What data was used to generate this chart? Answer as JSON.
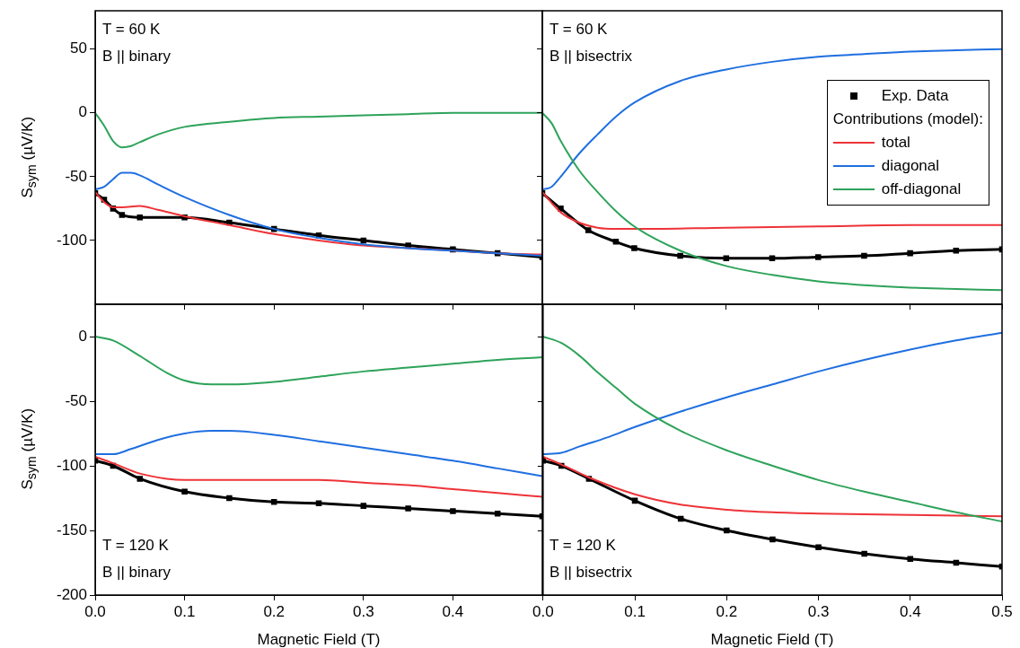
{
  "chart_data": [
    {
      "type": "line",
      "ylabel": "S$_{sym}$ (µV/K)",
      "annotations": [
        "T = 60 K",
        "B || binary"
      ],
      "xlim": [
        0,
        0.5
      ],
      "ylim": [
        -150,
        80
      ],
      "yticks": [
        50,
        0,
        -50,
        -100
      ],
      "xticks": [
        {
          "value": 0,
          "label": null
        },
        {
          "value": 0.1,
          "label": null
        },
        {
          "value": 0.2,
          "label": null
        },
        {
          "value": 0.3,
          "label": null
        },
        {
          "value": 0.4,
          "label": null
        },
        {
          "value": 0.5,
          "label": null
        }
      ],
      "tick_labels": "y",
      "grid": false,
      "legend": false,
      "series": [
        {
          "color": "#000000",
          "marker": "square",
          "x": [
            0,
            0.01,
            0.02,
            0.03,
            0.05,
            0.1,
            0.15,
            0.2,
            0.25,
            0.3,
            0.35,
            0.4,
            0.45,
            0.5
          ],
          "values": [
            -63,
            -68,
            -75,
            -80,
            -82,
            -82,
            -86,
            -91,
            -96,
            -100,
            -104,
            -107,
            -110,
            -113
          ]
        },
        {
          "color": "#ee3338",
          "x": [
            0,
            0.01,
            0.02,
            0.03,
            0.05,
            0.07,
            0.1,
            0.15,
            0.2,
            0.25,
            0.3,
            0.35,
            0.4,
            0.45,
            0.5
          ],
          "values": [
            -62,
            -70,
            -74,
            -74,
            -73,
            -76,
            -81,
            -88,
            -95,
            -100,
            -104,
            -106,
            -108,
            -110,
            -111
          ]
        },
        {
          "color": "#1f6fe0",
          "x": [
            0,
            0.01,
            0.02,
            0.03,
            0.04,
            0.05,
            0.07,
            0.1,
            0.15,
            0.2,
            0.25,
            0.3,
            0.35,
            0.4,
            0.45,
            0.5
          ],
          "values": [
            -60,
            -58,
            -52,
            -47,
            -47,
            -49,
            -56,
            -66,
            -80,
            -91,
            -98,
            -103,
            -106,
            -108,
            -110,
            -112
          ]
        },
        {
          "color": "#2ea35a",
          "x": [
            0,
            0.01,
            0.02,
            0.03,
            0.04,
            0.05,
            0.07,
            0.1,
            0.15,
            0.2,
            0.25,
            0.3,
            0.35,
            0.4,
            0.45,
            0.5
          ],
          "values": [
            0,
            -10,
            -22,
            -27,
            -26,
            -23,
            -17,
            -11,
            -7,
            -4,
            -3,
            -2,
            -1,
            0,
            0,
            0
          ]
        }
      ]
    },
    {
      "type": "line",
      "annotations": [
        "T = 60 K",
        "B || bisectrix"
      ],
      "legend_title": "Contributions (model):",
      "xlim": [
        0,
        0.5
      ],
      "ylim": [
        -150,
        80
      ],
      "yticks": [
        {
          "value": 50,
          "label": null
        },
        {
          "value": 0,
          "label": null
        },
        {
          "value": -50,
          "label": null
        },
        {
          "value": -100,
          "label": null
        }
      ],
      "xticks": [
        {
          "value": 0,
          "label": null
        },
        {
          "value": 0.1,
          "label": null
        },
        {
          "value": 0.2,
          "label": null
        },
        {
          "value": 0.3,
          "label": null
        },
        {
          "value": 0.4,
          "label": null
        },
        {
          "value": 0.5,
          "label": null
        }
      ],
      "tick_labels": false,
      "grid": false,
      "legend": "right",
      "series": [
        {
          "name": "Exp. Data",
          "color": "#000000",
          "marker": "square",
          "x": [
            0,
            0.02,
            0.05,
            0.08,
            0.1,
            0.15,
            0.2,
            0.25,
            0.3,
            0.35,
            0.4,
            0.45,
            0.5
          ],
          "values": [
            -63,
            -75,
            -92,
            -101,
            -106,
            -112,
            -114,
            -114,
            -113,
            -112,
            -110,
            -108,
            -107
          ]
        },
        {
          "name": "total",
          "color": "#ee3338",
          "x": [
            0,
            0.02,
            0.04,
            0.06,
            0.08,
            0.1,
            0.2,
            0.3,
            0.4,
            0.5
          ],
          "values": [
            -62,
            -78,
            -86,
            -90,
            -91,
            -91,
            -90,
            -89,
            -88,
            -88
          ]
        },
        {
          "name": "diagonal",
          "color": "#1f6fe0",
          "x": [
            0,
            0.01,
            0.02,
            0.04,
            0.06,
            0.08,
            0.1,
            0.15,
            0.2,
            0.25,
            0.3,
            0.35,
            0.4,
            0.45,
            0.5
          ],
          "values": [
            -60,
            -58,
            -50,
            -32,
            -17,
            -3,
            8,
            25,
            34,
            40,
            44,
            46,
            48,
            49,
            50
          ]
        },
        {
          "name": "off-diagonal",
          "color": "#2ea35a",
          "x": [
            0,
            0.01,
            0.02,
            0.04,
            0.06,
            0.08,
            0.1,
            0.15,
            0.2,
            0.25,
            0.3,
            0.35,
            0.4,
            0.45,
            0.5
          ],
          "values": [
            0,
            -8,
            -22,
            -45,
            -62,
            -77,
            -89,
            -108,
            -120,
            -127,
            -132,
            -135,
            -137,
            -138,
            -139
          ]
        }
      ]
    },
    {
      "type": "line",
      "ylabel": "S$_{sym}$ (µV/K)",
      "xlabel": "Magnetic Field (T)",
      "annotations": [
        "T = 120 K",
        "B || binary"
      ],
      "xlim": [
        0,
        0.5
      ],
      "ylim": [
        -200,
        25
      ],
      "yticks": [
        0,
        -50,
        -100,
        -150,
        -200
      ],
      "xticks": [
        {
          "value": 0,
          "label": "0.0"
        },
        {
          "value": 0.1,
          "label": "0.1"
        },
        {
          "value": 0.2,
          "label": "0.2"
        },
        {
          "value": 0.3,
          "label": "0.3"
        },
        {
          "value": 0.4,
          "label": "0.4"
        },
        {
          "value": 0.5,
          "label": null
        }
      ],
      "grid": false,
      "legend": false,
      "series": [
        {
          "color": "#000000",
          "marker": "square",
          "x": [
            0,
            0.02,
            0.05,
            0.1,
            0.15,
            0.2,
            0.25,
            0.3,
            0.35,
            0.4,
            0.45,
            0.5
          ],
          "values": [
            -96,
            -100,
            -110,
            -120,
            -125,
            -128,
            -129,
            -131,
            -133,
            -135,
            -137,
            -139
          ]
        },
        {
          "color": "#ee3338",
          "x": [
            0,
            0.02,
            0.05,
            0.08,
            0.1,
            0.2,
            0.25,
            0.3,
            0.35,
            0.4,
            0.45,
            0.5
          ],
          "values": [
            -93,
            -98,
            -106,
            -110,
            -111,
            -111,
            -111,
            -113,
            -115,
            -118,
            -121,
            -124
          ]
        },
        {
          "color": "#1f6fe0",
          "x": [
            0,
            0.02,
            0.04,
            0.07,
            0.1,
            0.13,
            0.15,
            0.2,
            0.25,
            0.3,
            0.35,
            0.4,
            0.45,
            0.5
          ],
          "values": [
            -91,
            -91,
            -87,
            -80,
            -75,
            -73,
            -73,
            -76,
            -81,
            -86,
            -91,
            -96,
            -102,
            -108
          ]
        },
        {
          "color": "#2ea35a",
          "x": [
            0,
            0.02,
            0.05,
            0.08,
            0.1,
            0.13,
            0.15,
            0.2,
            0.25,
            0.3,
            0.35,
            0.4,
            0.45,
            0.5
          ],
          "values": [
            0,
            -3,
            -15,
            -28,
            -34,
            -37,
            -37,
            -35,
            -31,
            -27,
            -24,
            -21,
            -18,
            -16
          ]
        }
      ]
    },
    {
      "type": "line",
      "xlabel": "Magnetic Field (T)",
      "annotations": [
        "T = 120 K",
        "B || bisectrix"
      ],
      "xlim": [
        0,
        0.5
      ],
      "ylim": [
        -200,
        25
      ],
      "yticks": [
        {
          "value": 0,
          "label": null
        },
        {
          "value": -50,
          "label": null
        },
        {
          "value": -100,
          "label": null
        },
        {
          "value": -150,
          "label": null
        },
        {
          "value": -200,
          "label": null
        }
      ],
      "xticks": [
        {
          "value": 0,
          "label": "0.0"
        },
        {
          "value": 0.1,
          "label": "0.1"
        },
        {
          "value": 0.2,
          "label": "0.2"
        },
        {
          "value": 0.3,
          "label": "0.3"
        },
        {
          "value": 0.4,
          "label": "0.4"
        },
        {
          "value": 0.5,
          "label": "0.5"
        }
      ],
      "tick_labels": "x",
      "grid": false,
      "legend": false,
      "series": [
        {
          "color": "#000000",
          "marker": "square",
          "x": [
            0,
            0.02,
            0.05,
            0.1,
            0.15,
            0.2,
            0.25,
            0.3,
            0.35,
            0.4,
            0.45,
            0.5
          ],
          "values": [
            -96,
            -100,
            -110,
            -127,
            -141,
            -150,
            -157,
            -163,
            -168,
            -172,
            -175,
            -178
          ]
        },
        {
          "color": "#ee3338",
          "x": [
            0,
            0.02,
            0.05,
            0.1,
            0.15,
            0.2,
            0.25,
            0.3,
            0.4,
            0.5
          ],
          "values": [
            -93,
            -99,
            -109,
            -122,
            -130,
            -134,
            -136,
            -137,
            -138,
            -139
          ]
        },
        {
          "color": "#1f6fe0",
          "x": [
            0,
            0.02,
            0.04,
            0.07,
            0.1,
            0.15,
            0.2,
            0.25,
            0.3,
            0.35,
            0.4,
            0.45,
            0.5
          ],
          "values": [
            -91,
            -90,
            -85,
            -78,
            -70,
            -58,
            -47,
            -37,
            -27,
            -18,
            -10,
            -3,
            3
          ]
        },
        {
          "color": "#2ea35a",
          "x": [
            0,
            0.02,
            0.04,
            0.06,
            0.08,
            0.1,
            0.15,
            0.2,
            0.25,
            0.3,
            0.35,
            0.4,
            0.45,
            0.5
          ],
          "values": [
            0,
            -5,
            -15,
            -28,
            -40,
            -52,
            -73,
            -88,
            -100,
            -111,
            -120,
            -128,
            -136,
            -143
          ]
        }
      ]
    }
  ]
}
